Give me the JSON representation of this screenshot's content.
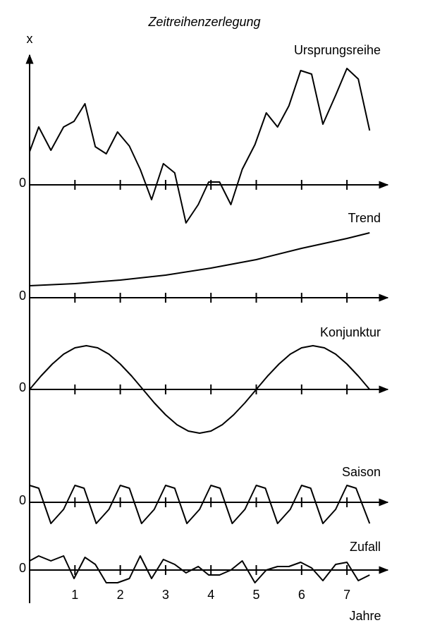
{
  "title": "Zeitreihenzerlegung",
  "y_label": "x",
  "x_label": "Jahre",
  "chart_data": [
    {
      "type": "line",
      "title": "Ursprungsreihe",
      "color": "#000000",
      "x": [
        0,
        0.2,
        0.47,
        0.75,
        0.98,
        1.22,
        1.45,
        1.69,
        1.94,
        2.2,
        2.44,
        2.69,
        2.95,
        3.2,
        3.45,
        3.72,
        3.95,
        4.19,
        4.44,
        4.69,
        4.97,
        5.22,
        5.47,
        5.72,
        5.98,
        6.22,
        6.47,
        6.75,
        7.0,
        7.25,
        7.5
      ],
      "values": [
        4.7,
        8.2,
        4.9,
        8.2,
        9.0,
        11.5,
        5.4,
        4.4,
        7.5,
        5.5,
        2.2,
        -2.1,
        3.0,
        1.7,
        -5.4,
        -2.8,
        0.4,
        0.4,
        -2.8,
        2.2,
        5.7,
        10.2,
        8.2,
        11.2,
        16.2,
        15.7,
        8.6,
        12.7,
        16.5,
        15.0,
        7.7
      ],
      "xlim": [
        0,
        7.9
      ],
      "xticks": [
        1,
        2,
        3,
        4,
        5,
        6,
        7
      ],
      "ylim": [
        -6,
        22
      ],
      "yticks": [
        0
      ]
    },
    {
      "type": "line",
      "title": "Trend",
      "color": "#000000",
      "x": [
        0,
        1,
        2,
        3,
        4,
        5,
        6,
        7,
        7.5
      ],
      "values": [
        1.7,
        2.0,
        2.5,
        3.2,
        4.2,
        5.4,
        7.0,
        8.4,
        9.2
      ],
      "xlim": [
        0,
        7.9
      ],
      "xticks": [
        1,
        2,
        3,
        4,
        5,
        6,
        7
      ],
      "ylim": [
        -2,
        13
      ],
      "yticks": [
        0
      ]
    },
    {
      "type": "line",
      "title": "Konjunktur",
      "color": "#000000",
      "x": [
        0,
        0.25,
        0.5,
        0.75,
        1,
        1.25,
        1.5,
        1.75,
        2,
        2.25,
        2.5,
        2.75,
        3,
        3.25,
        3.5,
        3.75,
        4,
        4.25,
        4.5,
        4.75,
        5,
        5.25,
        5.5,
        5.75,
        6,
        6.25,
        6.5,
        6.75,
        7,
        7.25,
        7.5
      ],
      "values": [
        0,
        1.9,
        3.6,
        5.0,
        5.9,
        6.2,
        5.9,
        5.0,
        3.6,
        1.9,
        0,
        -1.9,
        -3.6,
        -5.0,
        -5.9,
        -6.2,
        -5.9,
        -5.0,
        -3.6,
        -1.9,
        0,
        1.9,
        3.6,
        5.0,
        5.9,
        6.2,
        5.9,
        5.0,
        3.6,
        1.9,
        0
      ],
      "xlim": [
        0,
        7.9
      ],
      "xticks": [
        1,
        2,
        3,
        4,
        5,
        6,
        7
      ],
      "ylim": [
        -9,
        8
      ],
      "yticks": [
        0
      ]
    },
    {
      "type": "line",
      "title": "Saison",
      "color": "#000000",
      "x": [
        0,
        0.2,
        0.47,
        0.75,
        1,
        1.2,
        1.47,
        1.75,
        2,
        2.2,
        2.47,
        2.75,
        3,
        3.2,
        3.47,
        3.75,
        4,
        4.2,
        4.47,
        4.75,
        5,
        5.2,
        5.47,
        5.75,
        6,
        6.2,
        6.47,
        6.75,
        7,
        7.2,
        7.5
      ],
      "values": [
        2.4,
        2.0,
        -3.0,
        -1.0,
        2.4,
        2.0,
        -3.0,
        -1.0,
        2.4,
        2.0,
        -3.0,
        -1.0,
        2.4,
        2.0,
        -3.0,
        -1.0,
        2.4,
        2.0,
        -3.0,
        -1.0,
        2.4,
        2.0,
        -3.0,
        -1.0,
        2.4,
        2.0,
        -3.0,
        -1.0,
        2.4,
        2.0,
        -3.0
      ],
      "xlim": [
        0,
        7.9
      ],
      "xticks": [
        1,
        2,
        3,
        4,
        5,
        6,
        7
      ],
      "ylim": [
        -5,
        5
      ],
      "yticks": [
        0
      ]
    },
    {
      "type": "line",
      "title": "Zufall",
      "color": "#000000",
      "x": [
        0,
        0.2,
        0.47,
        0.75,
        0.98,
        1.22,
        1.45,
        1.69,
        1.94,
        2.2,
        2.44,
        2.69,
        2.95,
        3.2,
        3.45,
        3.72,
        3.95,
        4.19,
        4.44,
        4.69,
        4.97,
        5.22,
        5.47,
        5.72,
        5.98,
        6.22,
        6.47,
        6.75,
        7.0,
        7.25,
        7.5
      ],
      "values": [
        1.3,
        2.0,
        1.3,
        2.0,
        -1.2,
        1.8,
        0.8,
        -1.8,
        -1.8,
        -1.2,
        2.0,
        -1.2,
        1.5,
        0.8,
        -0.4,
        0.5,
        -0.7,
        -0.7,
        0,
        1.3,
        -1.8,
        0,
        0.5,
        0.5,
        1.1,
        0.3,
        -1.5,
        0.8,
        1.1,
        -1.5,
        -0.7
      ],
      "xlim": [
        0,
        7.9
      ],
      "xticks": [
        1,
        2,
        3,
        4,
        5,
        6,
        7
      ],
      "ylim": [
        -3.5,
        3.5
      ],
      "yticks": [
        0
      ]
    }
  ]
}
